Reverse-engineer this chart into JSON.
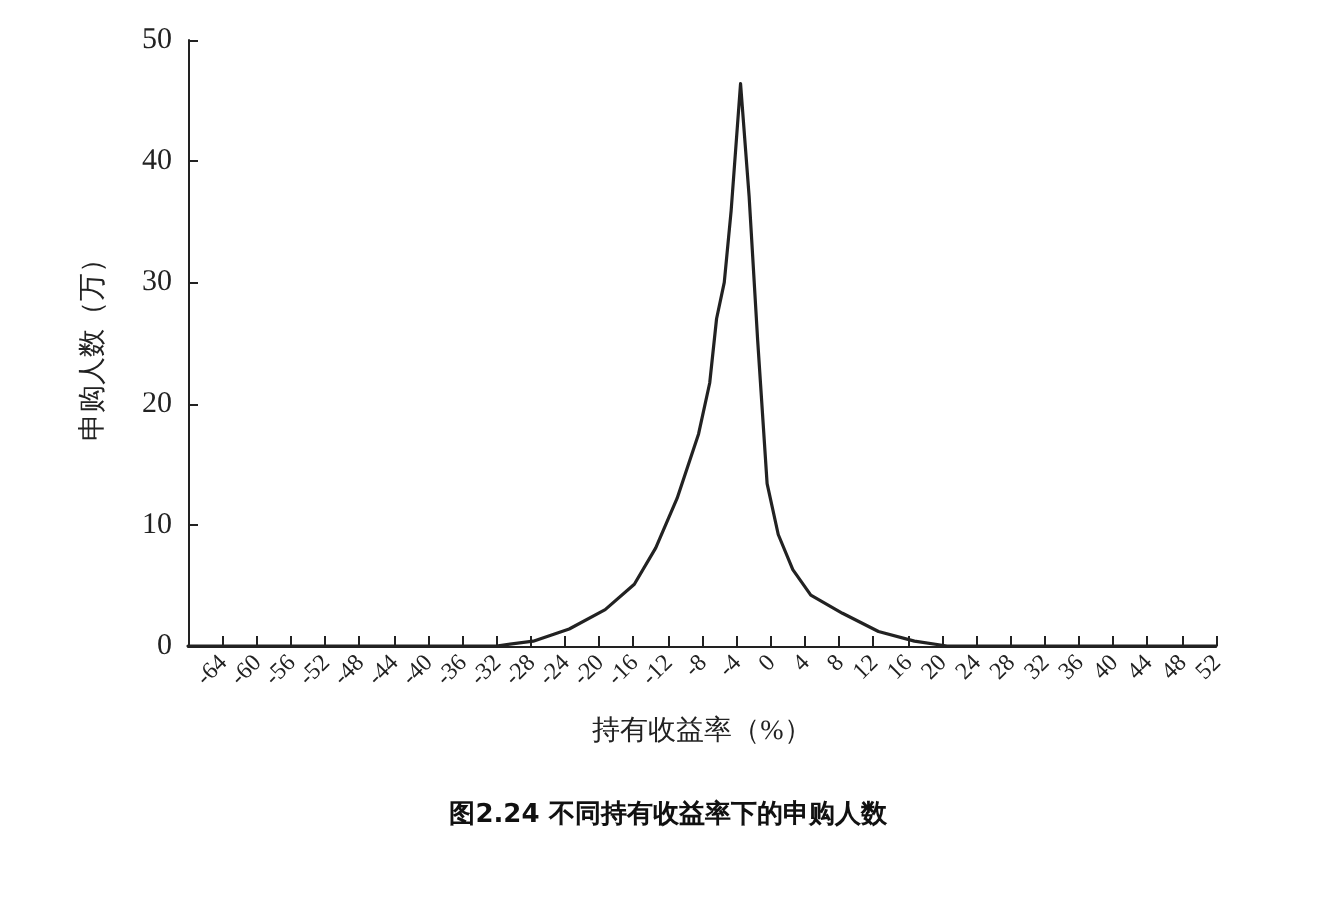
{
  "chart_data": {
    "type": "line",
    "title": "图2.24 不同持有收益率下的申购人数",
    "xlabel": "持有收益率（%）",
    "ylabel": "申购人数（万）",
    "series": [
      {
        "color": "#222222",
        "x": [
          -68,
          -32,
          -27.7,
          -23.5,
          -19.3,
          -15.9,
          -13.4,
          -10.9,
          -8.4,
          -7.1,
          -6.3,
          -5.4,
          -4.6,
          -3.5,
          -2.5,
          -1.5,
          -0.4,
          0.9,
          2.6,
          4.7,
          8.4,
          12.6,
          16.8,
          20.6,
          24,
          52
        ],
        "values": [
          0,
          0,
          0.4,
          1.4,
          3,
          5.1,
          8.1,
          12.2,
          17.5,
          21.7,
          27,
          30,
          35.9,
          46.4,
          37.1,
          25.2,
          13.4,
          9.2,
          6.3,
          4.2,
          2.7,
          1.2,
          0.4,
          0,
          0,
          0
        ]
      }
    ],
    "xlim": [
      -68,
      52
    ],
    "xticks": [
      -64,
      -60,
      -56,
      -52,
      -48,
      -44,
      -40,
      -36,
      -32,
      -28,
      -24,
      -20,
      -16,
      -12,
      -8,
      -4,
      0,
      4,
      8,
      12,
      16,
      20,
      24,
      28,
      32,
      36,
      40,
      44,
      48,
      52
    ],
    "ylim": [
      0,
      50
    ],
    "yticks": [
      0,
      10,
      20,
      30,
      40,
      50
    ],
    "marker": "none",
    "line_style": "solid"
  }
}
